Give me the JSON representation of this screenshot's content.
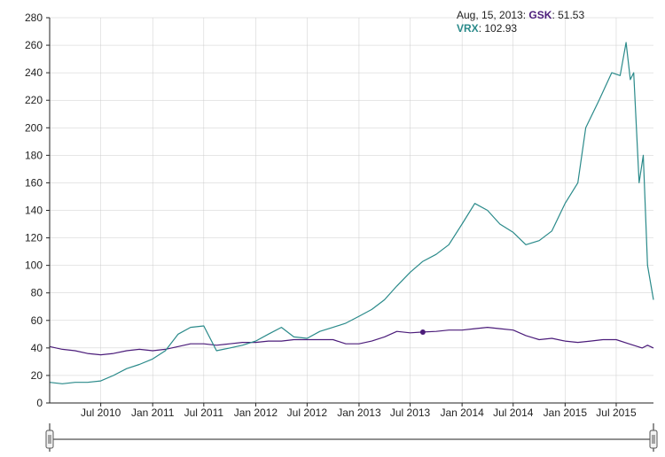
{
  "tooltip": {
    "date": "Aug, 15, 2013:",
    "gsk_name": "GSK",
    "gsk_value": ": 51.53",
    "vrx_name": "VRX",
    "vrx_value": ": 102.93"
  },
  "colors": {
    "GSK": "#4b1c7a",
    "VRX": "#2a8a8a",
    "axis": "#222222",
    "grid": "#cccccc"
  },
  "chart_data": {
    "type": "line",
    "title": "",
    "xlabel": "",
    "ylabel": "",
    "xlim": [
      "2010-01-01",
      "2015-11-10"
    ],
    "ylim": [
      0,
      280
    ],
    "yticks": [
      0,
      20,
      40,
      60,
      80,
      100,
      120,
      140,
      160,
      180,
      200,
      220,
      240,
      260,
      280
    ],
    "xticks": [
      {
        "date": "2010-07-01",
        "label": "Jul 2010"
      },
      {
        "date": "2011-01-01",
        "label": "Jan 2011"
      },
      {
        "date": "2011-07-01",
        "label": "Jul 2011"
      },
      {
        "date": "2012-01-01",
        "label": "Jan 2012"
      },
      {
        "date": "2012-07-01",
        "label": "Jul 2012"
      },
      {
        "date": "2013-01-01",
        "label": "Jan 2013"
      },
      {
        "date": "2013-07-01",
        "label": "Jul 2013"
      },
      {
        "date": "2014-01-01",
        "label": "Jan 2014"
      },
      {
        "date": "2014-07-01",
        "label": "Jul 2014"
      },
      {
        "date": "2015-01-01",
        "label": "Jan 2015"
      },
      {
        "date": "2015-07-01",
        "label": "Jul 2015"
      }
    ],
    "highlight": {
      "series": "GSK",
      "date": "2013-08-15",
      "value": 51.53
    },
    "series": [
      {
        "name": "GSK",
        "points": [
          [
            "2010-01-01",
            41
          ],
          [
            "2010-02-15",
            39
          ],
          [
            "2010-04-01",
            38
          ],
          [
            "2010-05-15",
            36
          ],
          [
            "2010-07-01",
            35
          ],
          [
            "2010-08-15",
            36
          ],
          [
            "2010-10-01",
            38
          ],
          [
            "2010-11-15",
            39
          ],
          [
            "2011-01-01",
            38
          ],
          [
            "2011-02-15",
            39
          ],
          [
            "2011-04-01",
            41
          ],
          [
            "2011-05-15",
            43
          ],
          [
            "2011-07-01",
            43
          ],
          [
            "2011-08-15",
            42
          ],
          [
            "2011-10-01",
            43
          ],
          [
            "2011-11-15",
            44
          ],
          [
            "2012-01-01",
            44
          ],
          [
            "2012-02-15",
            45
          ],
          [
            "2012-04-01",
            45
          ],
          [
            "2012-05-15",
            46
          ],
          [
            "2012-07-01",
            46
          ],
          [
            "2012-08-15",
            46
          ],
          [
            "2012-10-01",
            46
          ],
          [
            "2012-11-15",
            43
          ],
          [
            "2013-01-01",
            43
          ],
          [
            "2013-02-15",
            45
          ],
          [
            "2013-04-01",
            48
          ],
          [
            "2013-05-15",
            52
          ],
          [
            "2013-07-01",
            51
          ],
          [
            "2013-08-15",
            51.53
          ],
          [
            "2013-10-01",
            52
          ],
          [
            "2013-11-15",
            53
          ],
          [
            "2014-01-01",
            53
          ],
          [
            "2014-02-15",
            54
          ],
          [
            "2014-04-01",
            55
          ],
          [
            "2014-05-15",
            54
          ],
          [
            "2014-07-01",
            53
          ],
          [
            "2014-08-15",
            49
          ],
          [
            "2014-10-01",
            46
          ],
          [
            "2014-11-15",
            47
          ],
          [
            "2015-01-01",
            45
          ],
          [
            "2015-02-15",
            44
          ],
          [
            "2015-04-01",
            45
          ],
          [
            "2015-05-15",
            46
          ],
          [
            "2015-07-01",
            46
          ],
          [
            "2015-08-15",
            43
          ],
          [
            "2015-10-01",
            40
          ],
          [
            "2015-10-20",
            42
          ],
          [
            "2015-11-10",
            40
          ]
        ]
      },
      {
        "name": "VRX",
        "points": [
          [
            "2010-01-01",
            15
          ],
          [
            "2010-02-15",
            14
          ],
          [
            "2010-04-01",
            15
          ],
          [
            "2010-05-15",
            15
          ],
          [
            "2010-07-01",
            16
          ],
          [
            "2010-08-15",
            20
          ],
          [
            "2010-10-01",
            25
          ],
          [
            "2010-11-15",
            28
          ],
          [
            "2011-01-01",
            32
          ],
          [
            "2011-02-15",
            38
          ],
          [
            "2011-04-01",
            50
          ],
          [
            "2011-05-15",
            55
          ],
          [
            "2011-07-01",
            56
          ],
          [
            "2011-08-15",
            38
          ],
          [
            "2011-10-01",
            40
          ],
          [
            "2011-11-15",
            42
          ],
          [
            "2012-01-01",
            45
          ],
          [
            "2012-02-15",
            50
          ],
          [
            "2012-04-01",
            55
          ],
          [
            "2012-05-15",
            48
          ],
          [
            "2012-07-01",
            47
          ],
          [
            "2012-08-15",
            52
          ],
          [
            "2012-10-01",
            55
          ],
          [
            "2012-11-15",
            58
          ],
          [
            "2013-01-01",
            63
          ],
          [
            "2013-02-15",
            68
          ],
          [
            "2013-04-01",
            75
          ],
          [
            "2013-05-15",
            85
          ],
          [
            "2013-07-01",
            95
          ],
          [
            "2013-08-15",
            102.93
          ],
          [
            "2013-10-01",
            108
          ],
          [
            "2013-11-15",
            115
          ],
          [
            "2014-01-01",
            130
          ],
          [
            "2014-02-15",
            145
          ],
          [
            "2014-04-01",
            140
          ],
          [
            "2014-05-15",
            130
          ],
          [
            "2014-07-01",
            124
          ],
          [
            "2014-08-15",
            115
          ],
          [
            "2014-10-01",
            118
          ],
          [
            "2014-11-15",
            125
          ],
          [
            "2015-01-01",
            145
          ],
          [
            "2015-02-15",
            160
          ],
          [
            "2015-03-15",
            200
          ],
          [
            "2015-05-01",
            220
          ],
          [
            "2015-06-15",
            240
          ],
          [
            "2015-07-15",
            238
          ],
          [
            "2015-08-05",
            262
          ],
          [
            "2015-08-20",
            235
          ],
          [
            "2015-09-01",
            240
          ],
          [
            "2015-09-20",
            160
          ],
          [
            "2015-10-05",
            180
          ],
          [
            "2015-10-20",
            100
          ],
          [
            "2015-11-10",
            75
          ]
        ]
      }
    ]
  }
}
